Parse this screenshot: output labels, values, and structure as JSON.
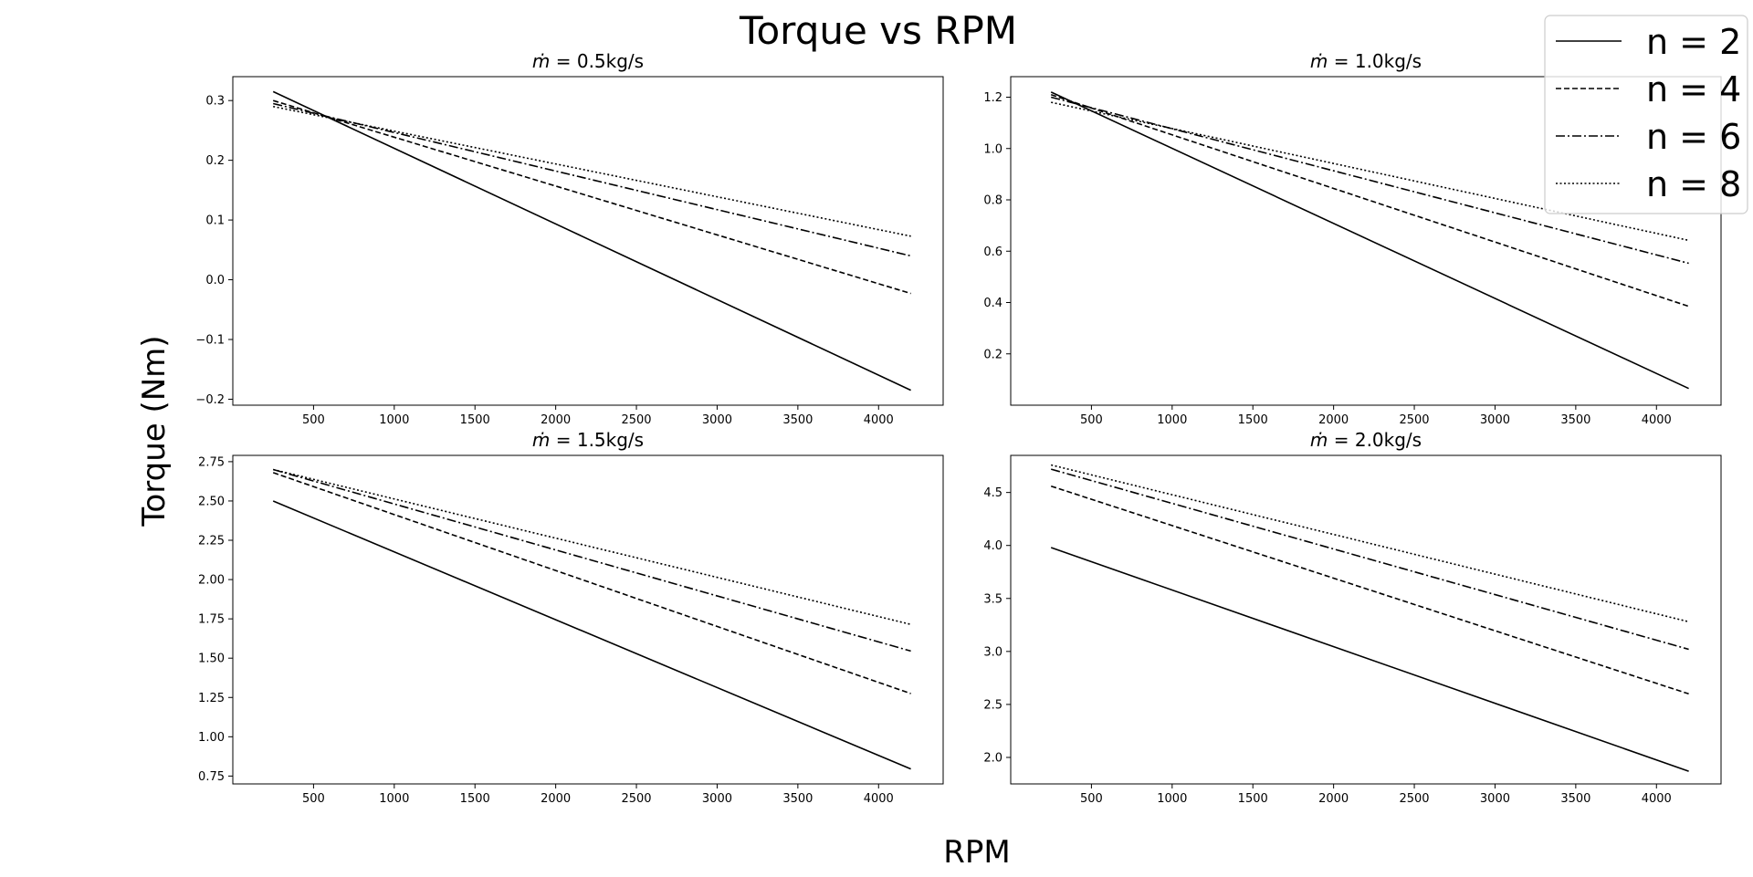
{
  "figure": {
    "title": "Torque vs RPM",
    "xlabel": "RPM",
    "ylabel": "Torque (Nm)"
  },
  "legend": {
    "placement": "top-right",
    "entries": [
      {
        "label": "n = 2",
        "style": "solid"
      },
      {
        "label": "n = 4",
        "style": "dashed"
      },
      {
        "label": "n = 6",
        "style": "dashdot"
      },
      {
        "label": "n = 8",
        "style": "dotted"
      }
    ]
  },
  "chart_data": [
    {
      "type": "line",
      "title": "ṁ = 0.5kg/s",
      "title_value": "0.5kg/s",
      "xlabel": "RPM",
      "ylabel": "Torque (Nm)",
      "x": [
        250,
        4200
      ],
      "xlim": [
        0,
        4400
      ],
      "xticks": [
        500,
        1000,
        1500,
        2000,
        2500,
        3000,
        3500,
        4000
      ],
      "ylim": [
        -0.21,
        0.34
      ],
      "yticks": [
        -0.2,
        -0.1,
        0.0,
        0.1,
        0.2,
        0.3
      ],
      "ytick_labels": [
        "−0.2",
        "−0.1",
        "0.0",
        "0.1",
        "0.2",
        "0.3"
      ],
      "series": [
        {
          "name": "n = 2",
          "style": "solid",
          "values": [
            0.315,
            -0.185
          ]
        },
        {
          "name": "n = 4",
          "style": "dashed",
          "values": [
            0.3,
            -0.023
          ]
        },
        {
          "name": "n = 6",
          "style": "dashdot",
          "values": [
            0.295,
            0.04
          ]
        },
        {
          "name": "n = 8",
          "style": "dotted",
          "values": [
            0.29,
            0.073
          ]
        }
      ],
      "grid": false
    },
    {
      "type": "line",
      "title": "ṁ = 1.0kg/s",
      "title_value": "1.0kg/s",
      "xlabel": "RPM",
      "ylabel": "Torque (Nm)",
      "x": [
        250,
        4200
      ],
      "xlim": [
        0,
        4400
      ],
      "xticks": [
        500,
        1000,
        1500,
        2000,
        2500,
        3000,
        3500,
        4000
      ],
      "ylim": [
        0.0,
        1.28
      ],
      "yticks": [
        0.2,
        0.4,
        0.6,
        0.8,
        1.0,
        1.2
      ],
      "ytick_labels": [
        "0.2",
        "0.4",
        "0.6",
        "0.8",
        "1.0",
        "1.2"
      ],
      "series": [
        {
          "name": "n = 2",
          "style": "solid",
          "values": [
            1.22,
            0.065
          ]
        },
        {
          "name": "n = 4",
          "style": "dashed",
          "values": [
            1.21,
            0.385
          ]
        },
        {
          "name": "n = 6",
          "style": "dashdot",
          "values": [
            1.2,
            0.553
          ]
        },
        {
          "name": "n = 8",
          "style": "dotted",
          "values": [
            1.18,
            0.642
          ]
        }
      ],
      "grid": false
    },
    {
      "type": "line",
      "title": "ṁ = 1.5kg/s",
      "title_value": "1.5kg/s",
      "xlabel": "RPM",
      "ylabel": "Torque (Nm)",
      "x": [
        250,
        4200
      ],
      "xlim": [
        0,
        4400
      ],
      "xticks": [
        500,
        1000,
        1500,
        2000,
        2500,
        3000,
        3500,
        4000
      ],
      "ylim": [
        0.7,
        2.79
      ],
      "yticks": [
        0.75,
        1.0,
        1.25,
        1.5,
        1.75,
        2.0,
        2.25,
        2.5,
        2.75
      ],
      "ytick_labels": [
        "0.75",
        "1.00",
        "1.25",
        "1.50",
        "1.75",
        "2.00",
        "2.25",
        "2.50",
        "2.75"
      ],
      "series": [
        {
          "name": "n = 2",
          "style": "solid",
          "values": [
            2.5,
            0.795
          ]
        },
        {
          "name": "n = 4",
          "style": "dashed",
          "values": [
            2.68,
            1.275
          ]
        },
        {
          "name": "n = 6",
          "style": "dashdot",
          "values": [
            2.7,
            1.545
          ]
        },
        {
          "name": "n = 8",
          "style": "dotted",
          "values": [
            2.7,
            1.715
          ]
        }
      ],
      "grid": false
    },
    {
      "type": "line",
      "title": "ṁ = 2.0kg/s",
      "title_value": "2.0kg/s",
      "xlabel": "RPM",
      "ylabel": "Torque (Nm)",
      "x": [
        250,
        4200
      ],
      "xlim": [
        0,
        4400
      ],
      "xticks": [
        500,
        1000,
        1500,
        2000,
        2500,
        3000,
        3500,
        4000
      ],
      "ylim": [
        1.75,
        4.85
      ],
      "yticks": [
        2.0,
        2.5,
        3.0,
        3.5,
        4.0,
        4.5
      ],
      "ytick_labels": [
        "2.0",
        "2.5",
        "3.0",
        "3.5",
        "4.0",
        "4.5"
      ],
      "series": [
        {
          "name": "n = 2",
          "style": "solid",
          "values": [
            3.98,
            1.87
          ]
        },
        {
          "name": "n = 4",
          "style": "dashed",
          "values": [
            4.56,
            2.6
          ]
        },
        {
          "name": "n = 6",
          "style": "dashdot",
          "values": [
            4.72,
            3.02
          ]
        },
        {
          "name": "n = 8",
          "style": "dotted",
          "values": [
            4.76,
            3.28
          ]
        }
      ],
      "grid": false
    }
  ]
}
